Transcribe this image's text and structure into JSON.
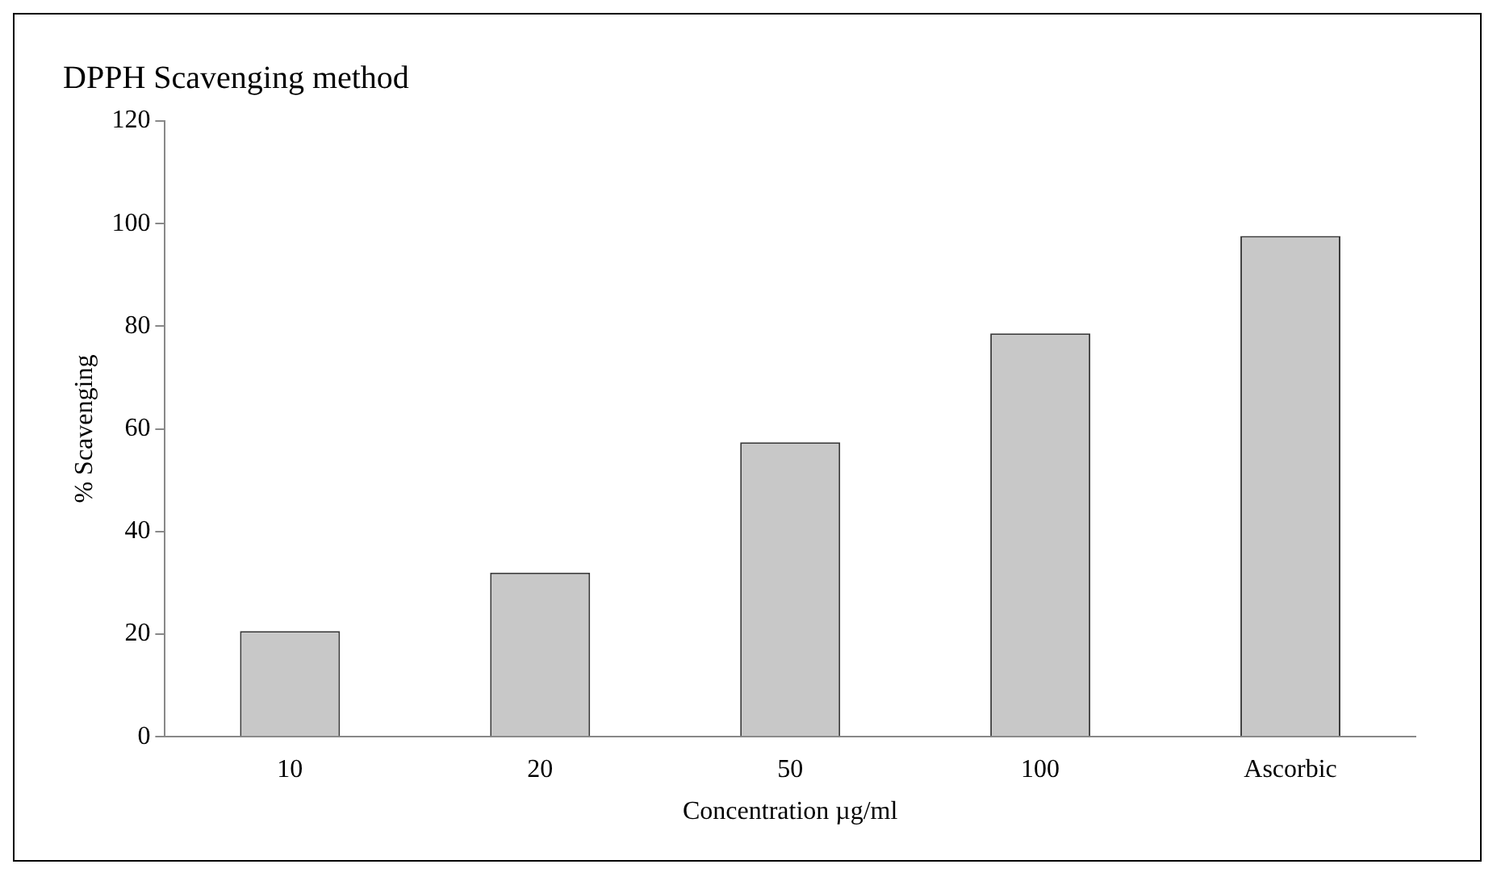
{
  "chart_data": {
    "type": "bar",
    "title": "DPPH Scavenging method",
    "xlabel": "Concentration µg/ml",
    "ylabel": "% Scavenging",
    "categories": [
      "10",
      "20",
      "50",
      "100",
      "Ascorbic"
    ],
    "values": [
      20.6,
      32,
      57.4,
      78.6,
      97.6
    ],
    "color": "#c8c8c8",
    "ylim": [
      0,
      120
    ],
    "yticks": [
      0,
      20,
      40,
      60,
      80,
      100,
      120
    ],
    "grid": false,
    "legend": false
  }
}
